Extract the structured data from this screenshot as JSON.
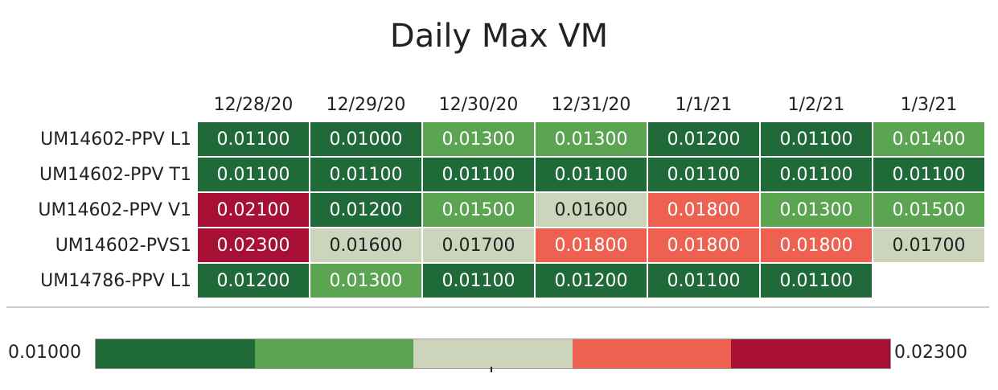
{
  "chart_data": {
    "type": "heatmap",
    "title": "Daily Max VM",
    "columns": [
      "12/28/20",
      "12/29/20",
      "12/30/20",
      "12/31/20",
      "1/1/21",
      "1/2/21",
      "1/3/21"
    ],
    "rows": [
      {
        "label": "UM14602-PPV L1",
        "values": [
          "0.01100",
          "0.01000",
          "0.01300",
          "0.01300",
          "0.01200",
          "0.01100",
          "0.01400"
        ]
      },
      {
        "label": "UM14602-PPV T1",
        "values": [
          "0.01100",
          "0.01100",
          "0.01100",
          "0.01100",
          "0.01100",
          "0.01100",
          "0.01100"
        ]
      },
      {
        "label": "UM14602-PPV V1",
        "values": [
          "0.02100",
          "0.01200",
          "0.01500",
          "0.01600",
          "0.01800",
          "0.01300",
          "0.01500"
        ]
      },
      {
        "label": "UM14602-PVS1",
        "values": [
          "0.02300",
          "0.01600",
          "0.01700",
          "0.01800",
          "0.01800",
          "0.01800",
          "0.01700"
        ]
      },
      {
        "label": "UM14786-PPV L1",
        "values": [
          "0.01200",
          "0.01300",
          "0.01100",
          "0.01200",
          "0.01100",
          "0.01100",
          ""
        ]
      }
    ],
    "legend": {
      "min_label": "0.01000",
      "max_label": "0.02300",
      "min": 0.01,
      "max": 0.023,
      "bins": 5,
      "colors": [
        "#206a3a",
        "#5ba552",
        "#cdd4bc",
        "#ee6151",
        "#a70f35"
      ],
      "text_colors": [
        "#ffffff",
        "#ffffff",
        "#222222",
        "#ffffff",
        "#ffffff"
      ]
    }
  }
}
